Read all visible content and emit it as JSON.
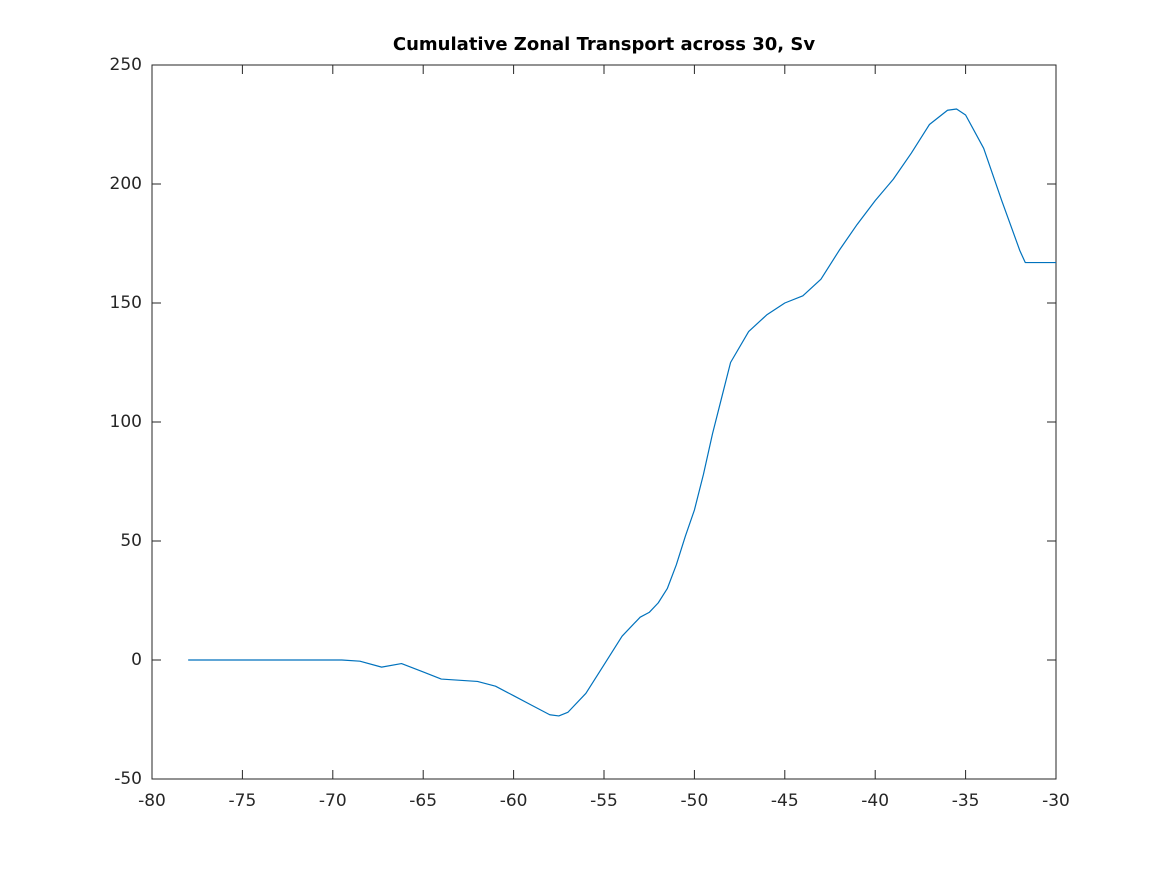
{
  "chart_data": {
    "type": "line",
    "title": "Cumulative Zonal Transport across 30, Sv",
    "x": [
      -78,
      -70,
      -69.5,
      -68.5,
      -67.3,
      -66.2,
      -65,
      -64,
      -62,
      -61,
      -60,
      -59,
      -58,
      -57.5,
      -57,
      -56,
      -55,
      -54,
      -53,
      -52.5,
      -52,
      -51.5,
      -51,
      -50.5,
      -50,
      -49.5,
      -49,
      -48.5,
      -48,
      -47,
      -46,
      -45,
      -44,
      -43,
      -42,
      -41,
      -40,
      -39,
      -38,
      -37,
      -36,
      -35.5,
      -35,
      -34,
      -33,
      -32,
      -31.7,
      -31,
      -30
    ],
    "series": [
      {
        "color": "#0072bd",
        "values": [
          0,
          0,
          0,
          -0.5,
          -3,
          -1.5,
          -5,
          -8,
          -9,
          -11,
          -15,
          -19,
          -23,
          -23.5,
          -22,
          -14,
          -2,
          10,
          18,
          20,
          24,
          30,
          40,
          52,
          63,
          78,
          95,
          110,
          125,
          138,
          145,
          150,
          153,
          160,
          172,
          183,
          193,
          202,
          213,
          225,
          231,
          231.5,
          229,
          215,
          193,
          172,
          167,
          167,
          167
        ]
      }
    ],
    "xlim": [
      -80,
      -30
    ],
    "xticks": [
      -80,
      -75,
      -70,
      -65,
      -60,
      -55,
      -50,
      -45,
      -40,
      -35,
      -30
    ],
    "ylim": [
      -50,
      250
    ],
    "yticks": [
      -50,
      0,
      50,
      100,
      150,
      200,
      250
    ],
    "grid": false
  }
}
